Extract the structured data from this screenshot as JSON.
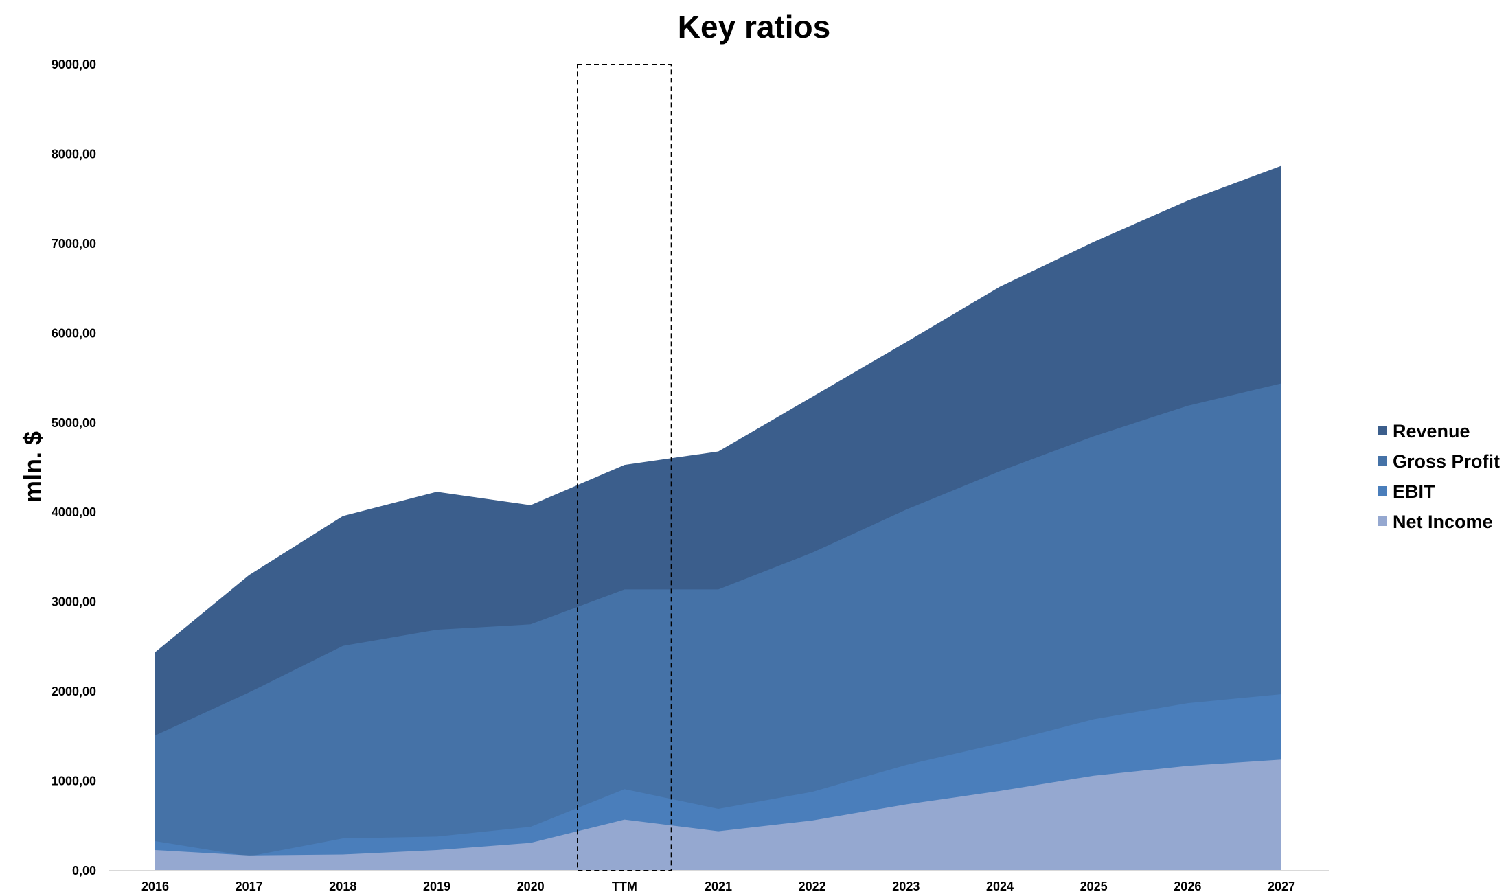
{
  "chart_data": {
    "type": "area",
    "title": "Key ratios",
    "xlabel": "",
    "ylabel": "mln. $",
    "ylim": [
      0,
      9000
    ],
    "yticks": [
      0,
      1000,
      2000,
      3000,
      4000,
      5000,
      6000,
      7000,
      8000,
      9000
    ],
    "ytick_labels": [
      "0,00",
      "1000,00",
      "2000,00",
      "3000,00",
      "4000,00",
      "5000,00",
      "6000,00",
      "7000,00",
      "8000,00",
      "9000,00"
    ],
    "categories": [
      "2016",
      "2017",
      "2018",
      "2019",
      "2020",
      "TTM",
      "2021",
      "2022",
      "2023",
      "2024",
      "2025",
      "2026",
      "2027"
    ],
    "highlight_category": "TTM",
    "legend_position": "right",
    "series": [
      {
        "name": "Revenue",
        "color": "#3b5e8c",
        "values": [
          2440,
          3300,
          3960,
          4230,
          4080,
          4530,
          4680,
          5290,
          5900,
          6520,
          7020,
          7480,
          7870
        ]
      },
      {
        "name": "Gross Profit",
        "color": "#4572a7",
        "values": [
          1510,
          1990,
          2510,
          2690,
          2750,
          3140,
          3140,
          3550,
          4030,
          4460,
          4850,
          5190,
          5440
        ]
      },
      {
        "name": "EBIT",
        "color": "#4a7ebb",
        "values": [
          330,
          160,
          360,
          380,
          490,
          910,
          690,
          880,
          1180,
          1420,
          1690,
          1870,
          1970
        ]
      },
      {
        "name": "Net Income",
        "color": "#95a8d0",
        "values": [
          230,
          170,
          180,
          230,
          310,
          570,
          440,
          560,
          740,
          890,
          1060,
          1170,
          1240
        ]
      }
    ]
  }
}
